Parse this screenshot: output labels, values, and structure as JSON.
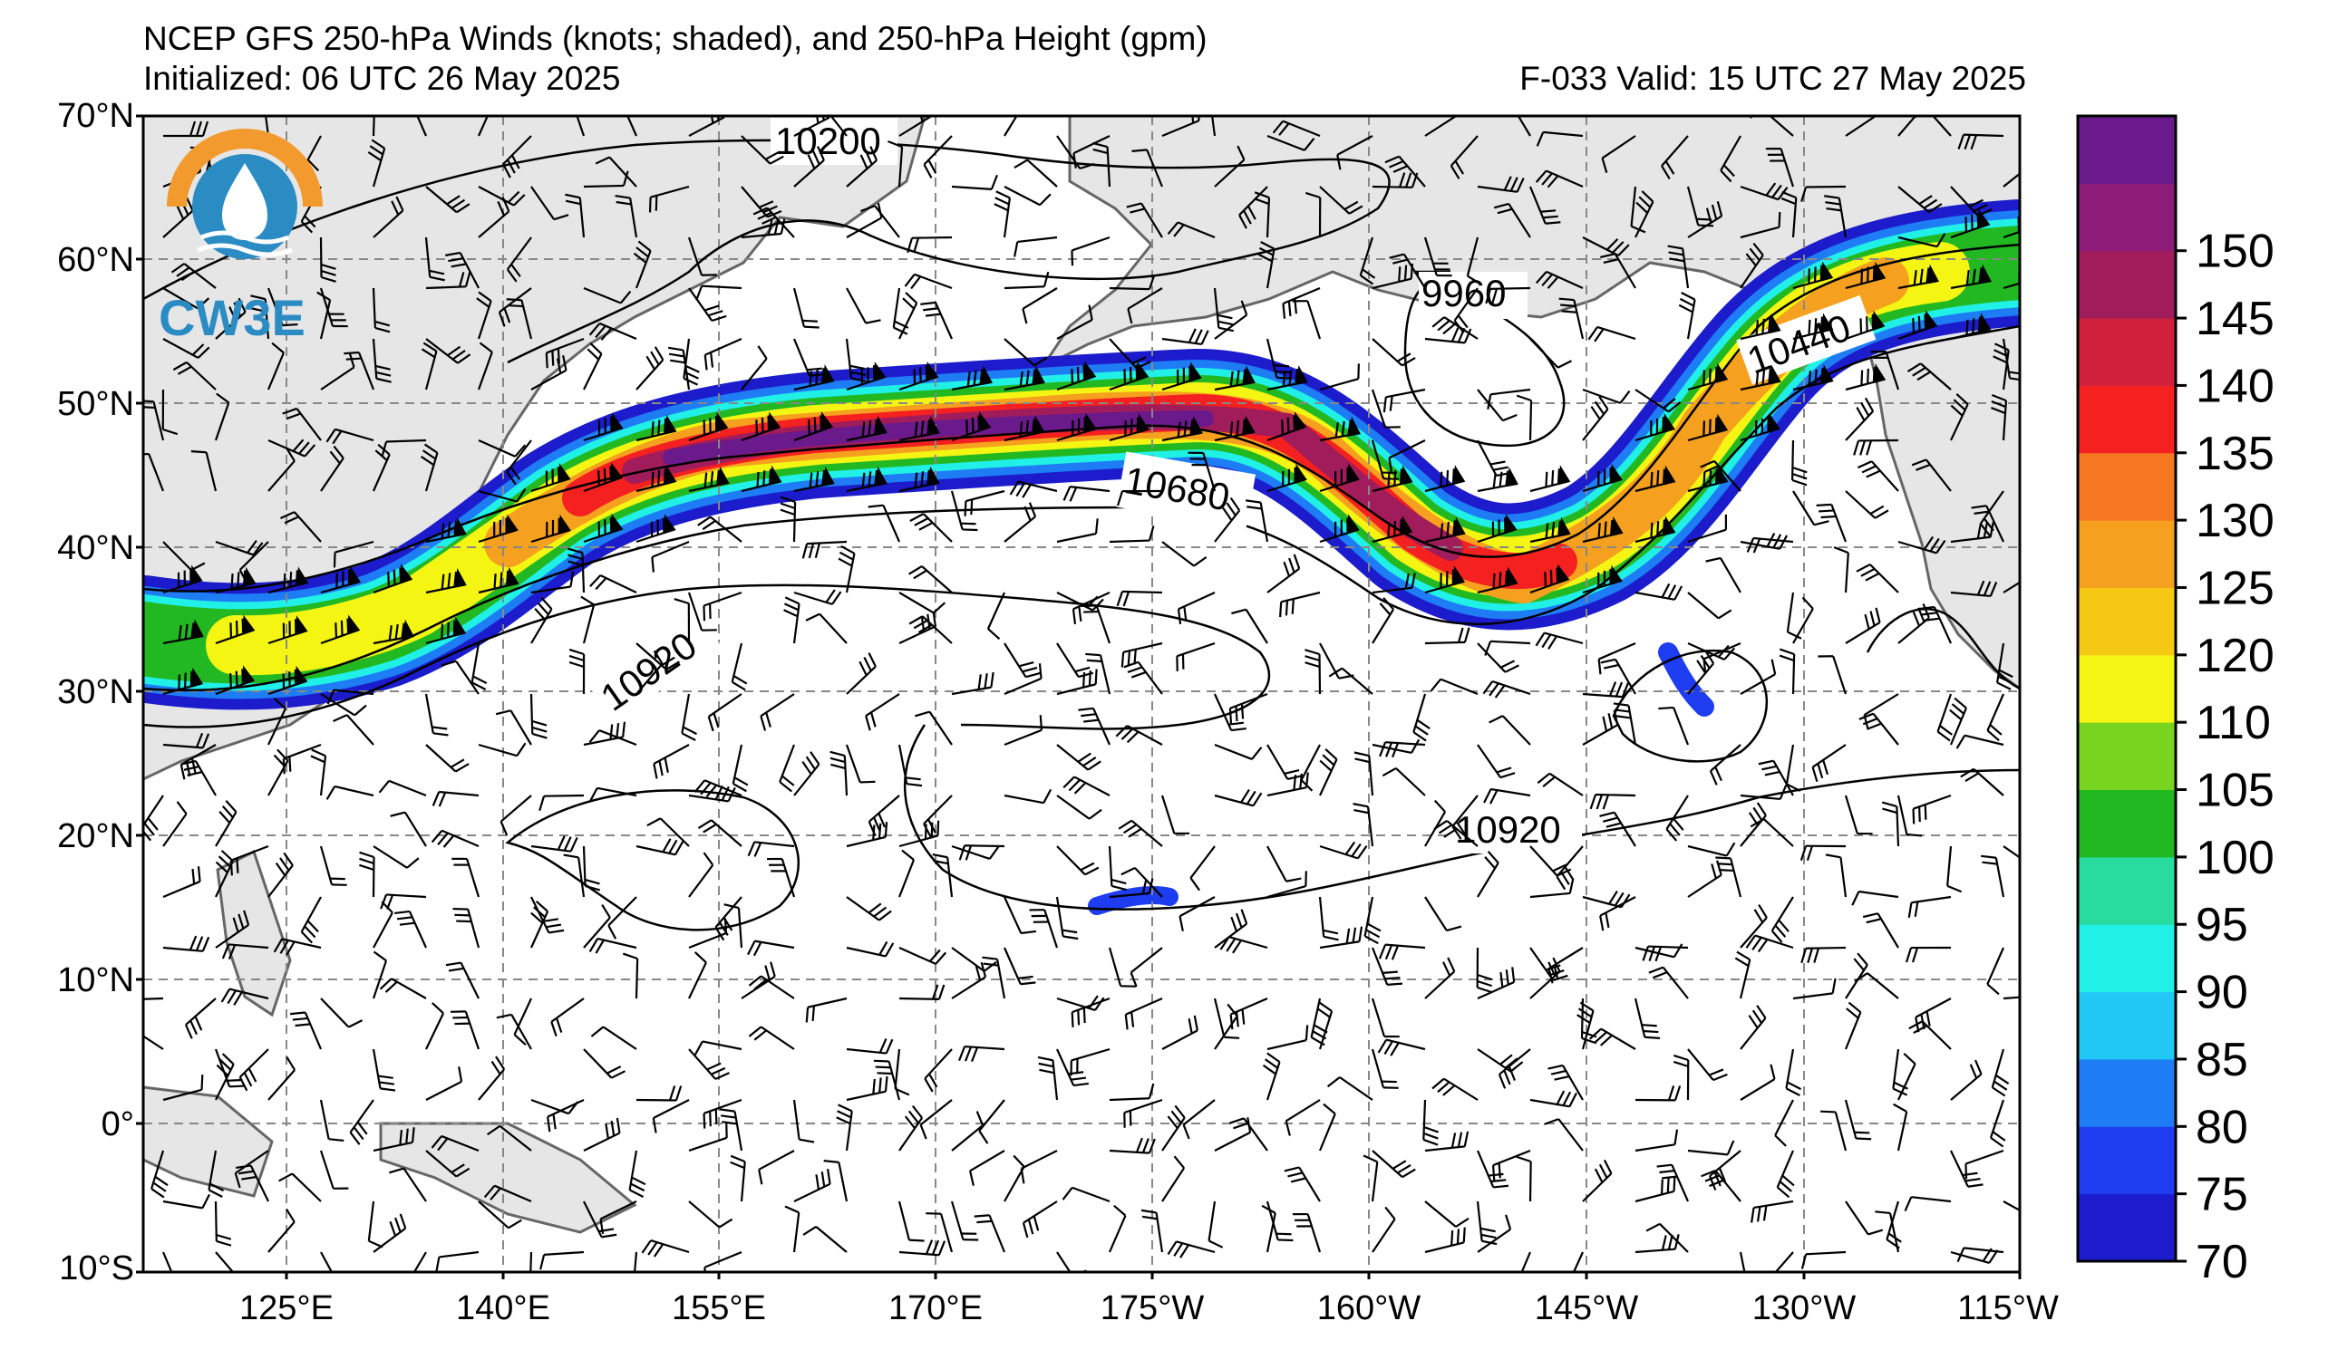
{
  "header": {
    "title": "NCEP GFS 250-hPa Winds (knots; shaded), and 250-hPa Height (gpm)",
    "initialized": "Initialized: 06 UTC 26 May 2025",
    "valid": "F-033  Valid: 15 UTC 27 May 2025"
  },
  "logo": {
    "text": "CW3E"
  },
  "axes": {
    "lat_labels": [
      "70°N",
      "60°N",
      "50°N",
      "40°N",
      "30°N",
      "20°N",
      "10°N",
      "0°",
      "10°S"
    ],
    "lon_labels": [
      "125°E",
      "140°E",
      "155°E",
      "170°E",
      "175°W",
      "160°W",
      "145°W",
      "130°W",
      "115°W"
    ]
  },
  "contours": {
    "labels": [
      "10200",
      "9960",
      "10440",
      "10680",
      "10920",
      "10920"
    ]
  },
  "colorbar": {
    "ticks": [
      "70",
      "75",
      "80",
      "85",
      "90",
      "95",
      "100",
      "105",
      "110",
      "120",
      "125",
      "130",
      "135",
      "140",
      "145",
      "150"
    ],
    "colors": [
      "#1c1ccc",
      "#1e3cf0",
      "#1e7cf5",
      "#22c8f5",
      "#20f0e6",
      "#28dca0",
      "#22b822",
      "#78d41e",
      "#f5f514",
      "#f5c814",
      "#f5a01e",
      "#f57820",
      "#f52020",
      "#d0203c",
      "#a01c5a",
      "#8c1c78",
      "#6a1a8a"
    ]
  },
  "map_colors": {
    "land": "#e6e6e6",
    "coast": "#666666",
    "ocean": "#ffffff",
    "grid": "#888888",
    "contour": "#000000"
  }
}
